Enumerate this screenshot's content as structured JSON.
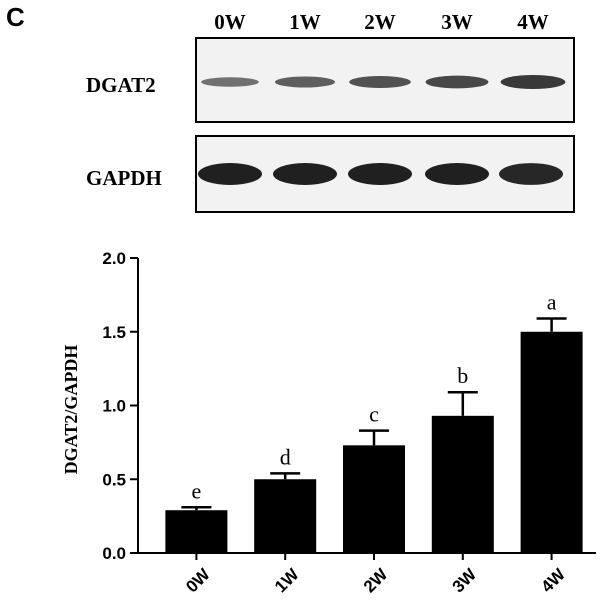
{
  "panel_letter": "C",
  "blot": {
    "lanes": [
      "0W",
      "1W",
      "2W",
      "3W",
      "4W"
    ],
    "rows": [
      {
        "protein": "DGAT2",
        "band_intensity": [
          0.35,
          0.5,
          0.6,
          0.68,
          0.8
        ]
      },
      {
        "protein": "GAPDH",
        "band_intensity": [
          1.0,
          1.0,
          1.0,
          1.0,
          0.95
        ]
      }
    ]
  },
  "chart_data": {
    "type": "bar",
    "categories": [
      "0W",
      "1W",
      "2W",
      "3W",
      "4W"
    ],
    "values": [
      0.29,
      0.5,
      0.73,
      0.93,
      1.5
    ],
    "errors": [
      0.02,
      0.04,
      0.1,
      0.16,
      0.09
    ],
    "significance": [
      "e",
      "d",
      "c",
      "b",
      "a"
    ],
    "title": "",
    "xlabel": "",
    "ylabel": "DGAT2/GAPDH",
    "ylim": [
      0,
      2.0
    ],
    "yticks": [
      "0.0",
      "0.5",
      "1.0",
      "1.5",
      "2.0"
    ],
    "bar_color": "#000000",
    "grid": false
  }
}
